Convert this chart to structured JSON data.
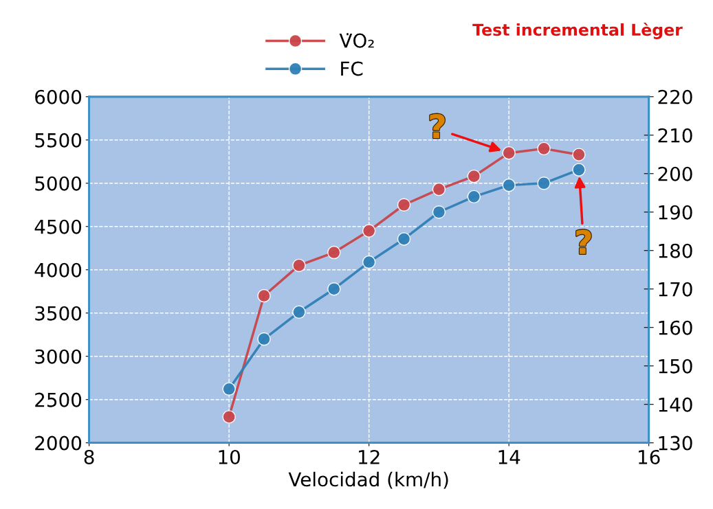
{
  "chart_data": {
    "type": "line",
    "xlabel": "Velocidad (km/h)",
    "x": [
      10,
      10.5,
      11,
      11.5,
      12,
      12.5,
      13,
      13.5,
      14,
      14.5,
      15
    ],
    "series": [
      {
        "name": "V̇O₂",
        "color": "#c8444a",
        "values": [
          2300,
          3700,
          4050,
          4200,
          4450,
          4750,
          4930,
          5080,
          5350,
          5400,
          5330
        ]
      },
      {
        "name": "FC",
        "color": "#2e7fb5",
        "axis": "y2",
        "values": [
          144,
          157,
          164,
          170,
          177,
          183,
          190,
          194,
          197,
          197.5,
          201
        ]
      }
    ],
    "xlim": [
      8,
      16
    ],
    "xticks": [
      8,
      10,
      12,
      14,
      16
    ],
    "ylim": [
      2000,
      6000
    ],
    "yticks": [
      2000,
      2500,
      3000,
      3500,
      4000,
      4500,
      5000,
      5500,
      6000
    ],
    "y2lim": [
      130,
      220
    ],
    "y2ticks": [
      130,
      140,
      150,
      160,
      170,
      180,
      190,
      200,
      210,
      220
    ],
    "grid": true,
    "legend": "top",
    "marker": "circle",
    "line_style": "solid",
    "annotations": [
      "Test incremental Lèger",
      {
        "text": "?",
        "x": 14,
        "y": 5350
      },
      {
        "text": "?",
        "x": 15,
        "y": 5170
      }
    ]
  }
}
